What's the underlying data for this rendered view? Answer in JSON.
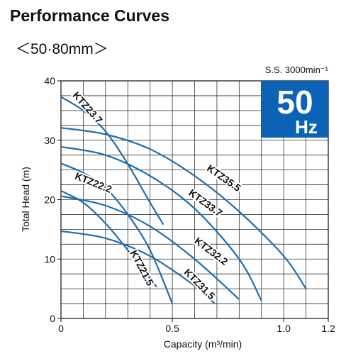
{
  "chart_data": {
    "type": "line",
    "title": "Performance Curves",
    "subtitle": "＜50·80mm＞",
    "annotation": "S.S. 3000min⁻¹",
    "badge": {
      "number": "50",
      "unit": "Hz",
      "color": "#0c63b5"
    },
    "x_label": "Capacity (m³/min)",
    "y_label": "Total Head (m)",
    "xlim": [
      0,
      1.2
    ],
    "ylim": [
      0,
      40
    ],
    "xticks": [
      0,
      0.5,
      {
        "value": 1,
        "label": "1.0"
      },
      1.2
    ],
    "yticks": [
      0,
      10,
      20,
      30,
      40
    ],
    "xgrid": [
      0.1,
      0.2,
      0.3,
      0.4,
      0.5,
      0.6,
      0.7,
      0.8,
      0.9,
      1,
      1.1
    ],
    "ygrid": [
      2.5,
      5,
      7.5,
      10,
      12.5,
      15,
      17.5,
      20,
      22.5,
      25,
      27.5,
      30,
      32.5,
      35,
      37.5
    ],
    "grid": true,
    "series": [
      {
        "name": "KTZ23.7",
        "color": "#1f6fae",
        "x": [
          0,
          0.1,
          0.2,
          0.3,
          0.4,
          0.46
        ],
        "values": [
          37.3,
          35,
          31.5,
          26,
          19.5,
          15.8
        ]
      },
      {
        "name": "KTZ35.5",
        "color": "#1f6fae",
        "x": [
          0,
          0.2,
          0.4,
          0.6,
          0.8,
          1,
          1.1
        ],
        "values": [
          32.1,
          31,
          28.5,
          24,
          18,
          10.5,
          5
        ]
      },
      {
        "name": "KTZ33.7",
        "color": "#1f6fae",
        "x": [
          0,
          0.2,
          0.4,
          0.6,
          0.8,
          0.9
        ],
        "values": [
          28.9,
          27.5,
          24,
          18.5,
          10,
          3
        ]
      },
      {
        "name": "KTZ22.2",
        "color": "#1f6fae",
        "x": [
          0,
          0.1,
          0.2,
          0.3,
          0.4,
          0.5
        ],
        "values": [
          26.1,
          24.5,
          22,
          17.5,
          11.5,
          2.5
        ]
      },
      {
        "name": "KTZ32.2",
        "color": "#1f6fae",
        "x": [
          0,
          0.2,
          0.4,
          0.6,
          0.8
        ],
        "values": [
          20.6,
          19,
          15.5,
          10,
          3.2
        ]
      },
      {
        "name": "KTZ21.5",
        "color": "#1f6fae",
        "x": [
          0,
          0.1,
          0.2,
          0.3,
          0.43
        ],
        "values": [
          21.5,
          19.5,
          16,
          11.5,
          5.3
        ]
      },
      {
        "name": "KTZ31.5",
        "color": "#1f6fae",
        "x": [
          0,
          0.2,
          0.4,
          0.6,
          0.69
        ],
        "values": [
          14.7,
          13.5,
          10.5,
          5.5,
          2.5
        ]
      }
    ]
  }
}
